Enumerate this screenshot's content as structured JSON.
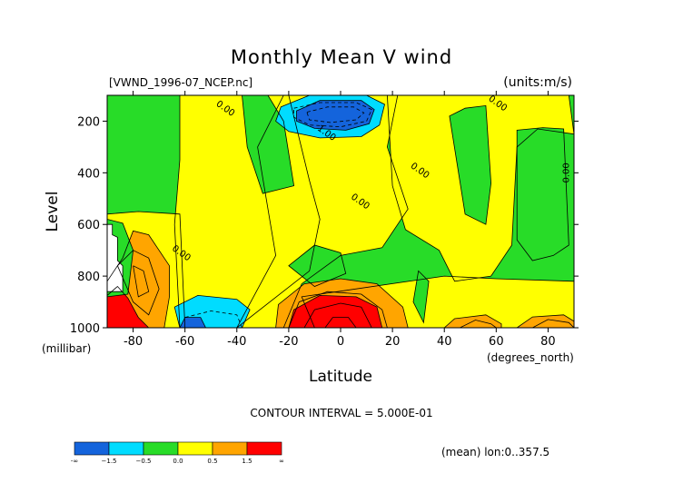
{
  "chart_data": {
    "type": "heatmap",
    "title": "Monthly Mean V wind",
    "subtitle_left": "[VWND_1996-07_NCEP.nc]",
    "subtitle_right": "(units:m/s)",
    "xlabel": "Latitude",
    "x_units": "(degrees_north)",
    "ylabel": "Level",
    "y_units": "(millibar)",
    "xlim": [
      -90,
      90
    ],
    "ylim": [
      1000,
      100
    ],
    "x_ticks": [
      -80,
      -60,
      -40,
      -20,
      0,
      20,
      40,
      60,
      80
    ],
    "y_ticks": [
      200,
      400,
      600,
      800,
      1000
    ],
    "footer": "CONTOUR INTERVAL = 5.000E-01",
    "mean_note": "(mean) lon:0..357.5",
    "colorbar": {
      "labels": [
        "-∞",
        "−1.5",
        "−0.5",
        "0.0",
        "0.5",
        "1.5",
        "∞"
      ],
      "colors": [
        "#1464dc",
        "#00dcff",
        "#28dc28",
        "#ffff00",
        "#ffa500",
        "#ff0000"
      ]
    },
    "contour_labels": [
      {
        "text": "0.00",
        "lat": -45,
        "lev": 160
      },
      {
        "text": "1.00",
        "lat": -6,
        "lev": 255
      },
      {
        "text": "0.00",
        "lat": 30,
        "lev": 400
      },
      {
        "text": "0.00",
        "lat": 7,
        "lev": 520
      },
      {
        "text": "0.00",
        "lat": 60,
        "lev": 140
      },
      {
        "text": "0.00",
        "lat": 88,
        "lev": 400
      },
      {
        "text": "0.00",
        "lat": -62,
        "lev": 720
      }
    ],
    "regions": [
      {
        "color": "#28dc28",
        "pts": [
          [
            -90,
            100
          ],
          [
            90,
            100
          ],
          [
            90,
            1000
          ],
          [
            -90,
            1000
          ]
        ]
      },
      {
        "color": "#ffff00",
        "pts": [
          [
            -62,
            100
          ],
          [
            -20,
            100
          ],
          [
            -12,
            430
          ],
          [
            -8,
            580
          ],
          [
            -12,
            780
          ],
          [
            -40,
            1000
          ],
          [
            -62,
            1000
          ],
          [
            -64,
            600
          ],
          [
            -62,
            350
          ]
        ]
      },
      {
        "color": "#ffff00",
        "pts": [
          [
            -22,
            100
          ],
          [
            22,
            100
          ],
          [
            18,
            300
          ],
          [
            26,
            540
          ],
          [
            16,
            690
          ],
          [
            0,
            720
          ],
          [
            -15,
            830
          ],
          [
            -22,
            1000
          ],
          [
            -40,
            1000
          ],
          [
            -25,
            720
          ],
          [
            -32,
            300
          ]
        ]
      },
      {
        "color": "#ffff00",
        "pts": [
          [
            18,
            100
          ],
          [
            88,
            100
          ],
          [
            90,
            250
          ],
          [
            76,
            230
          ],
          [
            68,
            300
          ],
          [
            66,
            680
          ],
          [
            58,
            800
          ],
          [
            44,
            820
          ],
          [
            38,
            700
          ],
          [
            25,
            620
          ],
          [
            20,
            450
          ]
        ]
      },
      {
        "color": "#ffff00",
        "pts": [
          [
            -15,
            880
          ],
          [
            40,
            800
          ],
          [
            60,
            810
          ],
          [
            90,
            820
          ],
          [
            90,
            1000
          ],
          [
            -10,
            1000
          ]
        ]
      },
      {
        "color": "#ffff00",
        "pts": [
          [
            -90,
            560
          ],
          [
            -78,
            550
          ],
          [
            -62,
            560
          ],
          [
            -60,
            1000
          ],
          [
            -90,
            1000
          ]
        ]
      },
      {
        "color": "#28dc28",
        "pts": [
          [
            -38,
            100
          ],
          [
            -28,
            100
          ],
          [
            -22,
            200
          ],
          [
            -18,
            450
          ],
          [
            -30,
            480
          ],
          [
            -36,
            300
          ]
        ]
      },
      {
        "color": "#28dc28",
        "pts": [
          [
            42,
            180
          ],
          [
            48,
            150
          ],
          [
            56,
            140
          ],
          [
            58,
            440
          ],
          [
            56,
            600
          ],
          [
            48,
            560
          ]
        ]
      },
      {
        "color": "#28dc28",
        "pts": [
          [
            68,
            235
          ],
          [
            78,
            225
          ],
          [
            86,
            230
          ],
          [
            88,
            680
          ],
          [
            82,
            720
          ],
          [
            74,
            740
          ],
          [
            68,
            660
          ]
        ]
      },
      {
        "color": "#28dc28",
        "pts": [
          [
            -20,
            760
          ],
          [
            -10,
            680
          ],
          [
            0,
            710
          ],
          [
            2,
            790
          ],
          [
            -10,
            840
          ]
        ]
      },
      {
        "color": "#28dc28",
        "pts": [
          [
            30,
            780
          ],
          [
            34,
            820
          ],
          [
            32,
            980
          ],
          [
            28,
            900
          ]
        ]
      },
      {
        "color": "#00dcff",
        "pts": [
          [
            -23,
            145
          ],
          [
            -12,
            100
          ],
          [
            10,
            100
          ],
          [
            17,
            135
          ],
          [
            15,
            215
          ],
          [
            8,
            260
          ],
          [
            -8,
            265
          ],
          [
            -20,
            240
          ],
          [
            -25,
            200
          ]
        ]
      },
      {
        "color": "#1464dc",
        "pts": [
          [
            -17,
            160
          ],
          [
            -8,
            120
          ],
          [
            8,
            120
          ],
          [
            13,
            155
          ],
          [
            11,
            210
          ],
          [
            2,
            235
          ],
          [
            -10,
            228
          ],
          [
            -17,
            200
          ]
        ]
      },
      {
        "color": "#00dcff",
        "pts": [
          [
            -62,
            1000
          ],
          [
            -64,
            920
          ],
          [
            -55,
            875
          ],
          [
            -40,
            890
          ],
          [
            -35,
            930
          ],
          [
            -38,
            1000
          ]
        ]
      },
      {
        "color": "#1464dc",
        "pts": [
          [
            -62,
            1000
          ],
          [
            -60,
            960
          ],
          [
            -54,
            960
          ],
          [
            -52,
            1000
          ]
        ]
      },
      {
        "color": "#ffa500",
        "pts": [
          [
            -90,
            820
          ],
          [
            -84,
            730
          ],
          [
            -80,
            625
          ],
          [
            -74,
            640
          ],
          [
            -66,
            760
          ],
          [
            -66,
            880
          ],
          [
            -68,
            1000
          ],
          [
            -90,
            1000
          ]
        ]
      },
      {
        "color": "#ff0000",
        "pts": [
          [
            -90,
            875
          ],
          [
            -86,
            840
          ],
          [
            -82,
            885
          ],
          [
            -78,
            960
          ],
          [
            -74,
            1000
          ],
          [
            -90,
            1000
          ]
        ]
      },
      {
        "color": "#ffa500",
        "pts": [
          [
            -25,
            1000
          ],
          [
            -24,
            910
          ],
          [
            -14,
            830
          ],
          [
            0,
            810
          ],
          [
            14,
            830
          ],
          [
            24,
            920
          ],
          [
            26,
            1000
          ]
        ]
      },
      {
        "color": "#ff0000",
        "pts": [
          [
            -20,
            1000
          ],
          [
            -18,
            930
          ],
          [
            -8,
            875
          ],
          [
            6,
            880
          ],
          [
            14,
            920
          ],
          [
            16,
            1000
          ]
        ]
      },
      {
        "color": "#ffa500",
        "pts": [
          [
            40,
            1000
          ],
          [
            44,
            965
          ],
          [
            56,
            950
          ],
          [
            62,
            985
          ],
          [
            62,
            1000
          ]
        ]
      },
      {
        "color": "#ffa500",
        "pts": [
          [
            68,
            1000
          ],
          [
            74,
            958
          ],
          [
            86,
            950
          ],
          [
            90,
            975
          ],
          [
            90,
            1000
          ]
        ]
      },
      {
        "color": "#28dc28",
        "pts": [
          [
            -90,
            580
          ],
          [
            -84,
            595
          ],
          [
            -80,
            700
          ],
          [
            -82,
            870
          ],
          [
            -90,
            880
          ]
        ]
      },
      {
        "color": "#ffffff",
        "pts": [
          [
            -90,
            600
          ],
          [
            -88,
            600
          ],
          [
            -88,
            640
          ],
          [
            -86,
            650
          ],
          [
            -86,
            740
          ],
          [
            -84,
            760
          ],
          [
            -84,
            860
          ],
          [
            -90,
            860
          ]
        ]
      }
    ],
    "contours": [
      {
        "style": "dash",
        "pts": [
          [
            -18,
            150
          ],
          [
            -8,
            128
          ],
          [
            6,
            128
          ],
          [
            12,
            155
          ],
          [
            10,
            200
          ],
          [
            0,
            222
          ],
          [
            -12,
            215
          ],
          [
            -18,
            185
          ],
          [
            -18,
            150
          ]
        ]
      },
      {
        "style": "dash",
        "pts": [
          [
            -13,
            165
          ],
          [
            -5,
            145
          ],
          [
            5,
            145
          ],
          [
            9,
            168
          ],
          [
            6,
            195
          ],
          [
            -4,
            205
          ],
          [
            -12,
            195
          ],
          [
            -13,
            165
          ]
        ]
      },
      {
        "style": "dash",
        "pts": [
          [
            -60,
            960
          ],
          [
            -50,
            935
          ],
          [
            -40,
            950
          ],
          [
            -38,
            1000
          ]
        ]
      },
      {
        "style": "solid",
        "pts": [
          [
            -86,
            760
          ],
          [
            -80,
            700
          ],
          [
            -74,
            730
          ],
          [
            -70,
            850
          ],
          [
            -74,
            950
          ],
          [
            -80,
            900
          ],
          [
            -86,
            760
          ]
        ]
      },
      {
        "style": "solid",
        "pts": [
          [
            -80,
            760
          ],
          [
            -76,
            780
          ],
          [
            -74,
            860
          ],
          [
            -78,
            880
          ],
          [
            -80,
            760
          ]
        ]
      },
      {
        "style": "solid",
        "pts": [
          [
            -20,
            1000
          ],
          [
            -16,
            900
          ],
          [
            -5,
            860
          ],
          [
            8,
            870
          ],
          [
            16,
            930
          ],
          [
            18,
            1000
          ]
        ]
      },
      {
        "style": "solid",
        "pts": [
          [
            -14,
            1000
          ],
          [
            -10,
            930
          ],
          [
            0,
            905
          ],
          [
            8,
            920
          ],
          [
            12,
            1000
          ]
        ]
      },
      {
        "style": "solid",
        "pts": [
          [
            -6,
            1000
          ],
          [
            -3,
            960
          ],
          [
            3,
            960
          ],
          [
            6,
            1000
          ]
        ]
      },
      {
        "style": "solid",
        "pts": [
          [
            46,
            1000
          ],
          [
            52,
            970
          ],
          [
            58,
            985
          ],
          [
            60,
            1000
          ]
        ]
      },
      {
        "style": "solid",
        "pts": [
          [
            74,
            1000
          ],
          [
            80,
            968
          ],
          [
            88,
            980
          ],
          [
            90,
            1000
          ]
        ]
      }
    ]
  }
}
